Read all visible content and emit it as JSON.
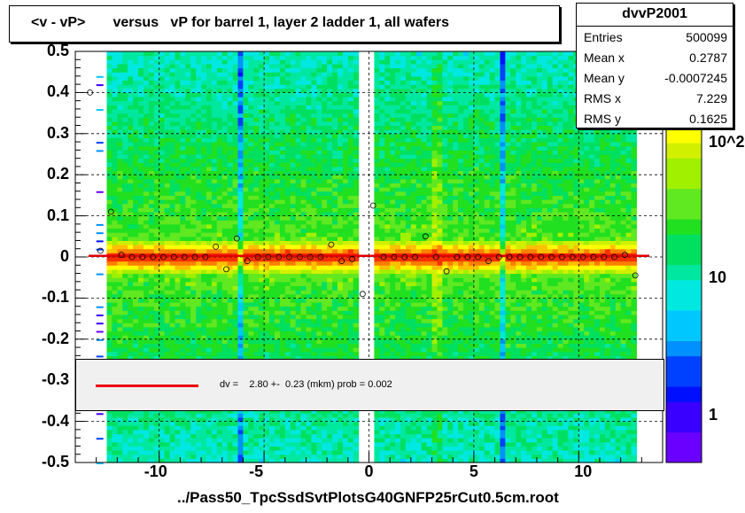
{
  "title": "<v - vP>       versus   vP for barrel 1, layer 2 ladder 1, all wafers",
  "stats": {
    "name": "dvvP2001",
    "rows": [
      {
        "k": "Entries",
        "v": "500099"
      },
      {
        "k": "Mean x",
        "v": "0.2787"
      },
      {
        "k": "Mean y",
        "v": "-0.0007245"
      },
      {
        "k": "RMS x",
        "v": "7.229"
      },
      {
        "k": "RMS y",
        "v": "0.1625"
      }
    ]
  },
  "fit_text": "dv =    2.80 +-  0.23 (mkm) prob = 0.002",
  "xlabel": "../Pass50_TpcSsdSvtPlotsG40GNFP25rCut0.5cm.root",
  "chart_data": {
    "type": "heatmap",
    "title": "<v - vP>       versus   vP for barrel 1, layer 2 ladder 1, all wafers",
    "xlabel": "../Pass50_TpcSsdSvtPlotsG40GNFP25rCut0.5cm.root",
    "ylabel": "",
    "xlim": [
      -14,
      14
    ],
    "ylim": [
      -0.5,
      0.5
    ],
    "x_ticks": [
      "-10",
      "-5",
      "0",
      "5",
      "10"
    ],
    "y_ticks": [
      "0.5",
      "0.4",
      "0.3",
      "0.2",
      "0.1",
      "0",
      "-0.1",
      "-0.2",
      "-0.3",
      "-0.4",
      "-0.5"
    ],
    "z_scale": "log",
    "z_ticks": [
      "1",
      "10",
      "10^2"
    ],
    "grid": true,
    "profile_points": {
      "x": [
        -13.3,
        -12.8,
        -12.3,
        -11.8,
        -11.3,
        -10.8,
        -10.3,
        -9.8,
        -9.3,
        -8.8,
        -8.3,
        -7.8,
        -7.3,
        -6.8,
        -6.3,
        -5.8,
        -5.3,
        -4.8,
        -4.3,
        -3.8,
        -3.3,
        -2.8,
        -2.3,
        -1.8,
        -1.3,
        -0.8,
        -0.3,
        0.2,
        0.7,
        1.2,
        1.7,
        2.2,
        2.7,
        3.2,
        3.7,
        4.2,
        4.7,
        5.2,
        5.7,
        6.2,
        6.7,
        7.2,
        7.7,
        8.2,
        8.7,
        9.2,
        9.7,
        10.2,
        10.7,
        11.2,
        11.7,
        12.2,
        12.7
      ],
      "y": [
        0.4,
        0.015,
        0.11,
        0.005,
        0.0,
        0.0,
        0.0,
        0.0,
        0.0,
        0.0,
        0.0,
        0.0,
        0.025,
        -0.03,
        0.045,
        -0.01,
        0.0,
        0.0,
        0.0,
        0.0,
        0.0,
        0.0,
        0.0,
        0.03,
        -0.01,
        -0.005,
        -0.09,
        0.125,
        0.0,
        0.0,
        0.0,
        0.0,
        0.05,
        0.0,
        -0.035,
        0.0,
        0.0,
        0.0,
        -0.01,
        0.0,
        0.0,
        0.0,
        0.0,
        0.0,
        0.0,
        0.0,
        0.0,
        0.0,
        0.0,
        0.0,
        0.0,
        0.005,
        -0.045
      ]
    },
    "fit": {
      "label": "dv =    2.80 +-  0.23 (mkm) prob = 0.002",
      "value": 0.0028,
      "color": "#e00000"
    },
    "palette": [
      "#6a00ff",
      "#3a00ff",
      "#0010ff",
      "#0040ff",
      "#0090ff",
      "#00c8ff",
      "#00e8e0",
      "#00e8a0",
      "#00e060",
      "#20e020",
      "#60e820",
      "#a0f000",
      "#d0f000",
      "#ffff00",
      "#ffc000",
      "#ff8000",
      "#ff3000"
    ]
  }
}
